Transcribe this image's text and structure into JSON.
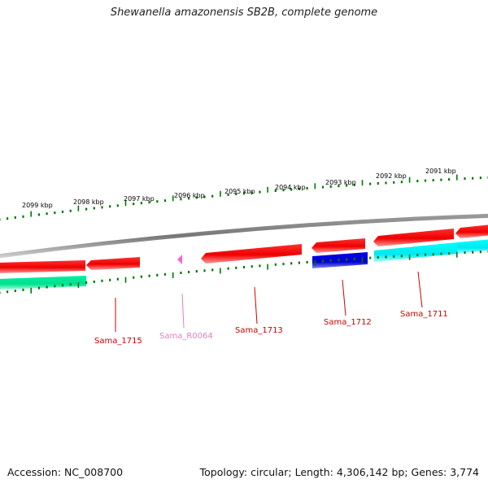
{
  "title": "Shewanella amazonensis SB2B, complete genome",
  "footer": {
    "accession": "Accession: NC_008700",
    "stats": "Topology: circular; Length: 4,306,142 bp; Genes: 3,774"
  },
  "scale_labels": [
    "2099 kbp",
    "2098 kbp",
    "2097 kbp",
    "2096 kbp",
    "2095 kbp",
    "2094 kbp",
    "2093 kbp",
    "2092 kbp",
    "2091 kbp"
  ],
  "gene_labels": [
    {
      "text": "Sama_1715",
      "color": "#cc0000"
    },
    {
      "text": "Sama_R0064",
      "color": "#e080c0"
    },
    {
      "text": "Sama_1713",
      "color": "#cc0000"
    },
    {
      "text": "Sama_1712",
      "color": "#cc0000"
    },
    {
      "text": "Sama_1711",
      "color": "#cc0000"
    }
  ],
  "colors": {
    "backbone": "#888888",
    "cds": "#ff0000",
    "rna": "#ff66cc",
    "blue_feature": "#0000dd",
    "cyan_feature": "#00ffff",
    "green_feature": "#00ee99",
    "ticks": "#007700"
  }
}
